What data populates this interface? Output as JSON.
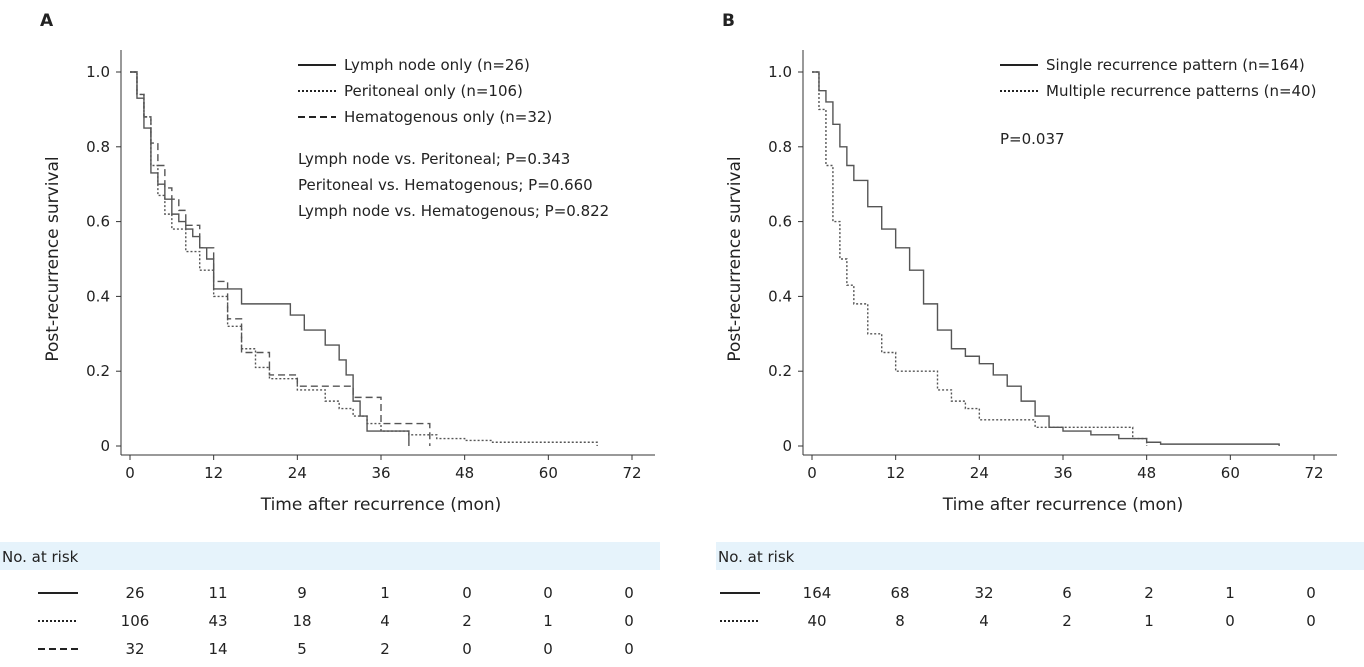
{
  "chart_data": [
    {
      "type": "line",
      "panel_label": "A",
      "xlabel": "Time after recurrence (mon)",
      "ylabel": "Post-recurrence survival",
      "xlim": [
        0,
        72
      ],
      "ylim": [
        0,
        1.0
      ],
      "xticks": [
        "0",
        "12",
        "24",
        "36",
        "48",
        "60",
        "72"
      ],
      "yticks": [
        "0",
        "0.2",
        "0.4",
        "0.6",
        "0.8",
        "1.0"
      ],
      "legend_position": "top-right",
      "series": [
        {
          "name": "Lymph node only (n=26)",
          "style": "solid",
          "x": [
            0,
            1,
            2,
            3,
            4,
            5,
            6,
            7,
            8,
            9,
            10,
            11,
            12,
            14,
            16,
            20,
            23,
            25,
            28,
            30,
            31,
            32,
            33,
            34,
            35,
            40
          ],
          "y": [
            1.0,
            0.93,
            0.85,
            0.73,
            0.7,
            0.66,
            0.62,
            0.6,
            0.58,
            0.56,
            0.53,
            0.5,
            0.42,
            0.42,
            0.38,
            0.38,
            0.35,
            0.31,
            0.27,
            0.23,
            0.19,
            0.12,
            0.08,
            0.04,
            0.04,
            0.0
          ]
        },
        {
          "name": "Peritoneal only (n=106)",
          "style": "dotted",
          "x": [
            0,
            1,
            2,
            3,
            4,
            5,
            6,
            8,
            10,
            12,
            14,
            16,
            18,
            20,
            24,
            28,
            30,
            32,
            34,
            36,
            40,
            44,
            48,
            52,
            60,
            67
          ],
          "y": [
            1.0,
            0.94,
            0.88,
            0.75,
            0.67,
            0.62,
            0.58,
            0.52,
            0.47,
            0.4,
            0.32,
            0.26,
            0.21,
            0.18,
            0.15,
            0.12,
            0.1,
            0.08,
            0.06,
            0.04,
            0.03,
            0.02,
            0.015,
            0.01,
            0.01,
            0.0
          ]
        },
        {
          "name": "Hematogenous only (n=32)",
          "style": "dashed",
          "x": [
            0,
            1,
            2,
            3,
            4,
            5,
            6,
            7,
            8,
            10,
            12,
            14,
            16,
            20,
            24,
            28,
            32,
            36,
            40,
            43
          ],
          "y": [
            1.0,
            0.94,
            0.88,
            0.81,
            0.75,
            0.69,
            0.66,
            0.63,
            0.59,
            0.53,
            0.44,
            0.34,
            0.25,
            0.19,
            0.16,
            0.16,
            0.13,
            0.06,
            0.06,
            0.0
          ]
        }
      ],
      "annotations": [
        "Lymph node vs. Peritoneal; P=0.343",
        "Peritoneal vs. Hematogenous; P=0.660",
        "Lymph node vs. Hematogenous; P=0.822"
      ],
      "risk_table": {
        "header": "No. at risk",
        "rows": [
          {
            "style": "solid",
            "values": [
              "26",
              "11",
              "9",
              "1",
              "0",
              "0",
              "0"
            ]
          },
          {
            "style": "dotted",
            "values": [
              "106",
              "43",
              "18",
              "4",
              "2",
              "1",
              "0"
            ]
          },
          {
            "style": "dashed",
            "values": [
              "32",
              "14",
              "5",
              "2",
              "0",
              "0",
              "0"
            ]
          }
        ]
      }
    },
    {
      "type": "line",
      "panel_label": "B",
      "xlabel": "Time after recurrence (mon)",
      "ylabel": "Post-recurrence survival",
      "xlim": [
        0,
        72
      ],
      "ylim": [
        0,
        1.0
      ],
      "xticks": [
        "0",
        "12",
        "24",
        "36",
        "48",
        "60",
        "72"
      ],
      "yticks": [
        "0",
        "0.2",
        "0.4",
        "0.6",
        "0.8",
        "1.0"
      ],
      "legend_position": "top-right",
      "series": [
        {
          "name": "Single recurrence pattern (n=164)",
          "style": "solid",
          "x": [
            0,
            1,
            2,
            3,
            4,
            5,
            6,
            8,
            10,
            12,
            14,
            16,
            18,
            20,
            22,
            24,
            26,
            28,
            30,
            32,
            34,
            36,
            40,
            44,
            48,
            50,
            60,
            67
          ],
          "y": [
            1.0,
            0.95,
            0.92,
            0.86,
            0.8,
            0.75,
            0.71,
            0.64,
            0.58,
            0.53,
            0.47,
            0.38,
            0.31,
            0.26,
            0.24,
            0.22,
            0.19,
            0.16,
            0.12,
            0.08,
            0.05,
            0.04,
            0.03,
            0.02,
            0.01,
            0.005,
            0.005,
            0.0
          ]
        },
        {
          "name": "Multiple recurrence patterns (n=40)",
          "style": "dotted",
          "x": [
            0,
            1,
            2,
            3,
            4,
            5,
            6,
            8,
            10,
            12,
            14,
            16,
            18,
            20,
            22,
            24,
            28,
            32,
            36,
            40,
            46,
            48
          ],
          "y": [
            1.0,
            0.9,
            0.75,
            0.6,
            0.5,
            0.43,
            0.38,
            0.3,
            0.25,
            0.2,
            0.2,
            0.2,
            0.15,
            0.12,
            0.1,
            0.07,
            0.07,
            0.05,
            0.05,
            0.05,
            0.02,
            0.0
          ]
        }
      ],
      "annotations": [
        "P=0.037"
      ],
      "risk_table": {
        "header": "No. at risk",
        "rows": [
          {
            "style": "solid",
            "values": [
              "164",
              "68",
              "32",
              "6",
              "2",
              "1",
              "0"
            ]
          },
          {
            "style": "dotted",
            "values": [
              "40",
              "8",
              "4",
              "2",
              "1",
              "0",
              "0"
            ]
          }
        ]
      }
    }
  ]
}
